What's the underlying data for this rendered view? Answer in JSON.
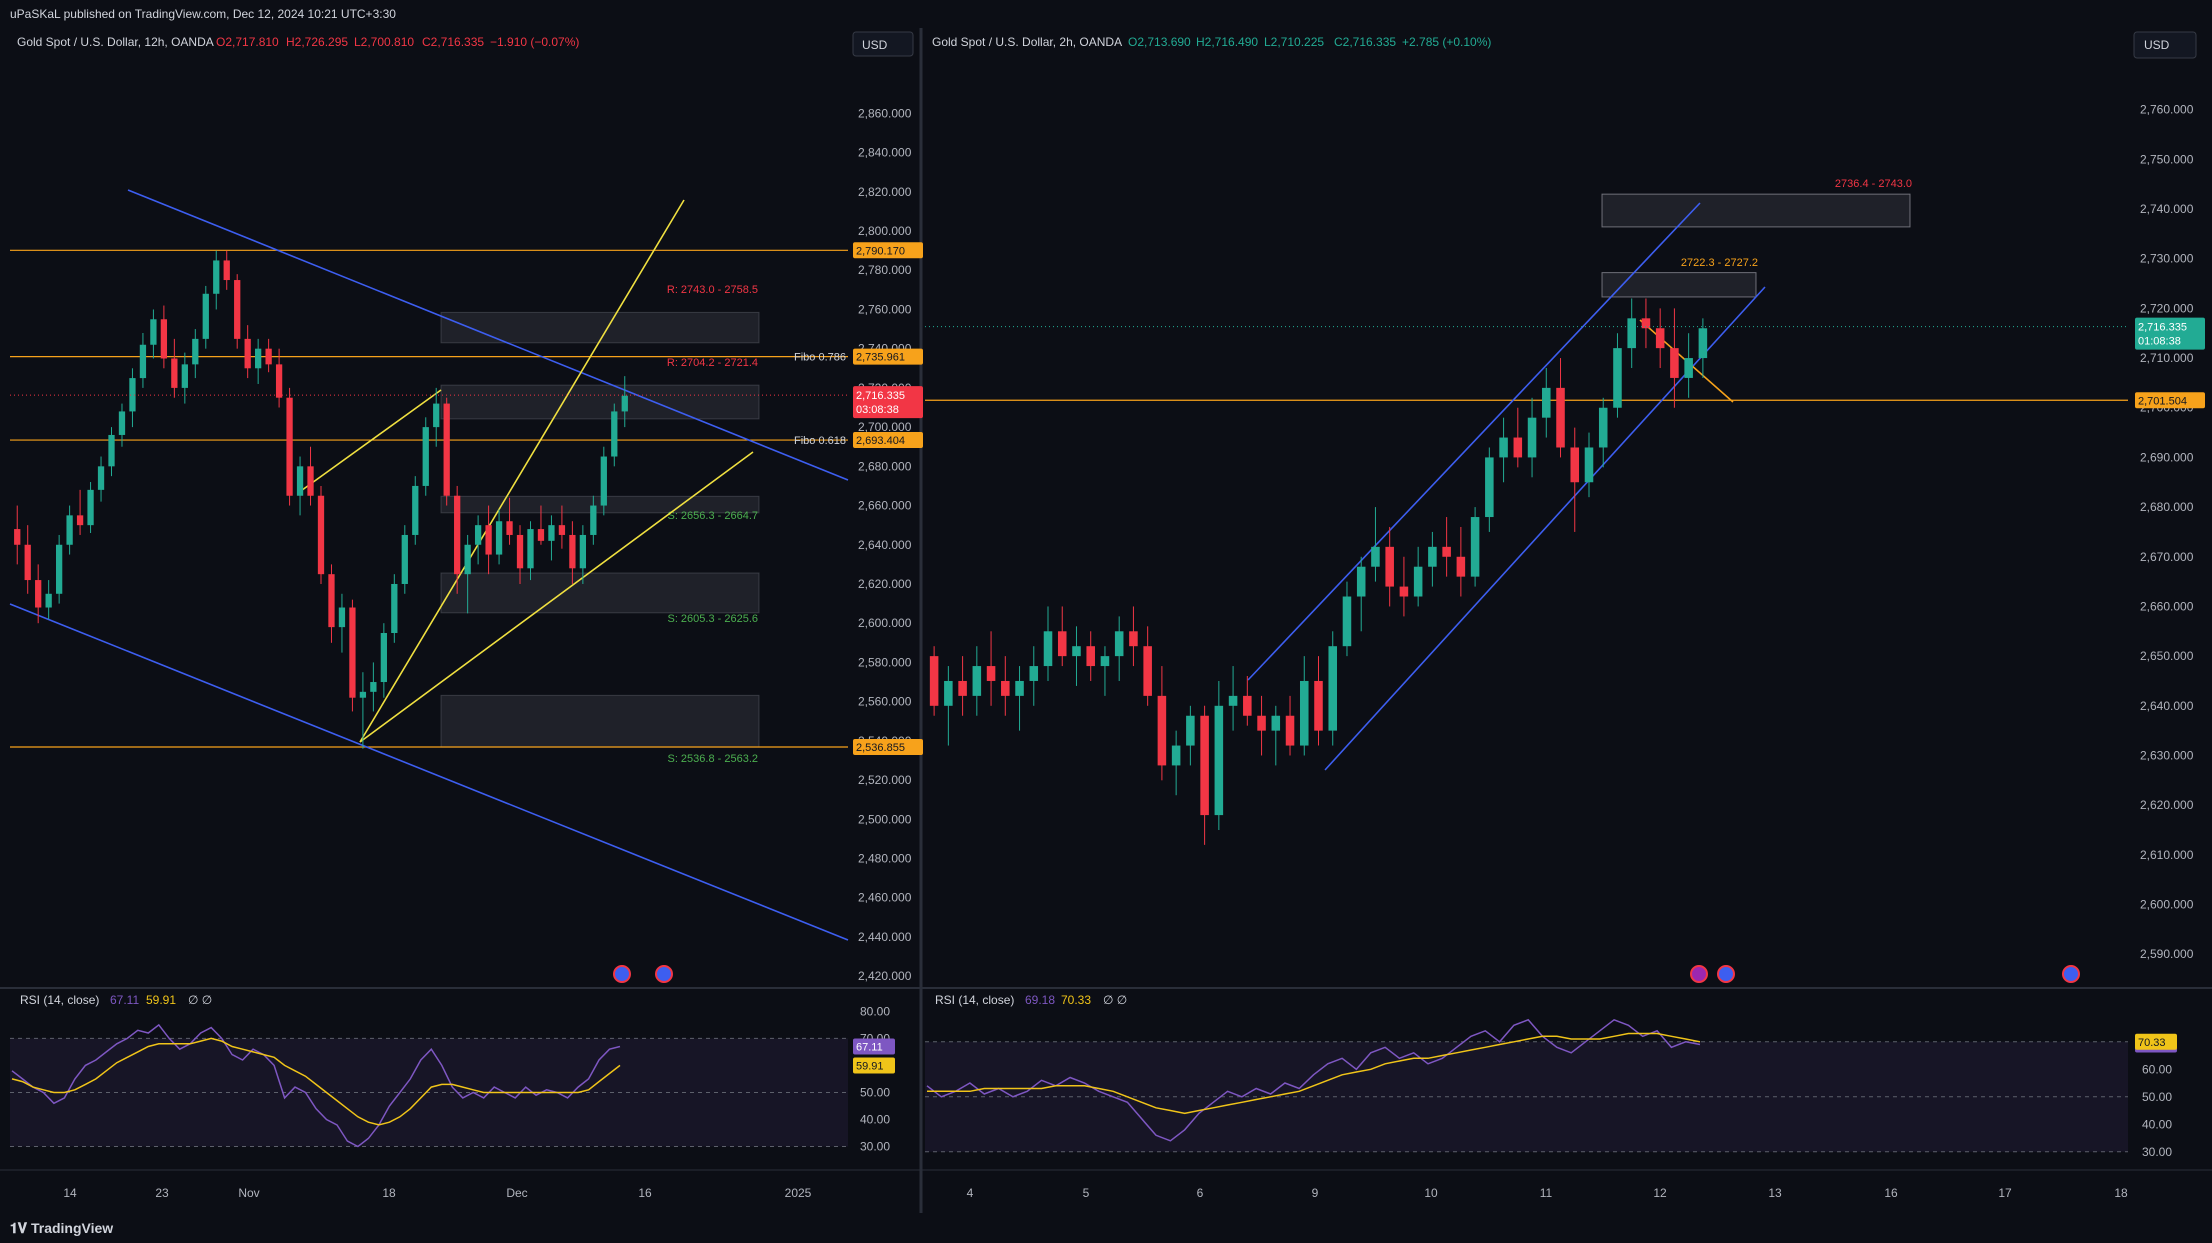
{
  "header": {
    "published_text": "uPaSKaL published on TradingView.com, Dec 12, 2024 10:21 UTC+3:30"
  },
  "footer": {
    "brand": "TradingView"
  },
  "colors": {
    "up": "#22ab94",
    "down": "#f23645",
    "fib": "#f7a21b",
    "channel_blue": "#3d5ef0",
    "channel_yellow": "#f0e040",
    "rsi": "#7e57c2",
    "rsi_ma": "#f0c419"
  },
  "chart_data": [
    {
      "type": "candlestick",
      "panel": "left",
      "title": "Gold Spot / U.S. Dollar, 12h, OANDA",
      "ohlc_label": {
        "o": "O2,717.810",
        "h": "H2,726.295",
        "l": "L2,700.810",
        "c": "C2,716.335",
        "chg": "−1.910 (−0.07%)"
      },
      "currency": "USD",
      "x_ticks": [
        "14",
        "23",
        "Nov",
        "18",
        "Dec",
        "16",
        "2025"
      ],
      "y_ticks": [
        "2,860.000",
        "2,840.000",
        "2,820.000",
        "2,800.000",
        "2,780.000",
        "2,760.000",
        "2,740.000",
        "2,720.000",
        "2,700.000",
        "2,680.000",
        "2,660.000",
        "2,640.000",
        "2,620.000",
        "2,600.000",
        "2,580.000",
        "2,560.000",
        "2,540.000",
        "2,520.000",
        "2,500.000",
        "2,480.000",
        "2,460.000",
        "2,440.000",
        "2,420.000"
      ],
      "ylim": [
        2416,
        2876
      ],
      "candles": [
        [
          2648,
          2660,
          2630,
          2640
        ],
        [
          2640,
          2650,
          2615,
          2622
        ],
        [
          2622,
          2630,
          2600,
          2608
        ],
        [
          2608,
          2622,
          2602,
          2615
        ],
        [
          2615,
          2645,
          2610,
          2640
        ],
        [
          2640,
          2660,
          2635,
          2655
        ],
        [
          2655,
          2668,
          2645,
          2650
        ],
        [
          2650,
          2672,
          2646,
          2668
        ],
        [
          2668,
          2685,
          2662,
          2680
        ],
        [
          2680,
          2700,
          2675,
          2696
        ],
        [
          2696,
          2712,
          2690,
          2708
        ],
        [
          2708,
          2730,
          2700,
          2725
        ],
        [
          2725,
          2748,
          2720,
          2742
        ],
        [
          2742,
          2760,
          2735,
          2755
        ],
        [
          2755,
          2762,
          2730,
          2735
        ],
        [
          2735,
          2745,
          2715,
          2720
        ],
        [
          2720,
          2738,
          2712,
          2732
        ],
        [
          2732,
          2750,
          2725,
          2745
        ],
        [
          2745,
          2772,
          2740,
          2768
        ],
        [
          2768,
          2790,
          2760,
          2785
        ],
        [
          2785,
          2790,
          2770,
          2775
        ],
        [
          2775,
          2778,
          2740,
          2745
        ],
        [
          2745,
          2752,
          2725,
          2730
        ],
        [
          2730,
          2745,
          2722,
          2740
        ],
        [
          2740,
          2745,
          2728,
          2732
        ],
        [
          2732,
          2740,
          2710,
          2715
        ],
        [
          2715,
          2720,
          2660,
          2665
        ],
        [
          2665,
          2685,
          2655,
          2680
        ],
        [
          2680,
          2690,
          2660,
          2665
        ],
        [
          2665,
          2670,
          2620,
          2625
        ],
        [
          2625,
          2630,
          2590,
          2598
        ],
        [
          2598,
          2615,
          2585,
          2608
        ],
        [
          2608,
          2612,
          2555,
          2562
        ],
        [
          2562,
          2575,
          2536,
          2565
        ],
        [
          2565,
          2580,
          2555,
          2570
        ],
        [
          2570,
          2600,
          2562,
          2595
        ],
        [
          2595,
          2625,
          2590,
          2620
        ],
        [
          2620,
          2650,
          2615,
          2645
        ],
        [
          2645,
          2675,
          2640,
          2670
        ],
        [
          2670,
          2705,
          2665,
          2700
        ],
        [
          2700,
          2720,
          2690,
          2712
        ],
        [
          2712,
          2715,
          2660,
          2665
        ],
        [
          2665,
          2670,
          2615,
          2625
        ],
        [
          2625,
          2645,
          2605,
          2640
        ],
        [
          2640,
          2655,
          2630,
          2650
        ],
        [
          2650,
          2660,
          2625,
          2635
        ],
        [
          2635,
          2658,
          2630,
          2652
        ],
        [
          2652,
          2664,
          2640,
          2645
        ],
        [
          2645,
          2650,
          2620,
          2628
        ],
        [
          2628,
          2652,
          2622,
          2648
        ],
        [
          2648,
          2660,
          2640,
          2642
        ],
        [
          2642,
          2655,
          2632,
          2650
        ],
        [
          2650,
          2660,
          2638,
          2645
        ],
        [
          2645,
          2652,
          2620,
          2628
        ],
        [
          2628,
          2650,
          2620,
          2645
        ],
        [
          2645,
          2665,
          2640,
          2660
        ],
        [
          2660,
          2690,
          2655,
          2685
        ],
        [
          2685,
          2712,
          2680,
          2708
        ],
        [
          2708,
          2726,
          2700,
          2716
        ]
      ],
      "horizontal_levels": [
        {
          "price": 2790.17,
          "label": "2,790.170"
        },
        {
          "price": 2735.961,
          "label": "2,735.961",
          "tag": "Fibo 0.786"
        },
        {
          "price": 2693.404,
          "label": "2,693.404",
          "tag": "Fibo 0.618"
        },
        {
          "price": 2536.855,
          "label": "2,536.855"
        }
      ],
      "current_price": {
        "label": "2,716.335",
        "countdown": "03:08:38"
      },
      "zones": [
        {
          "text": "R: 2743.0 - 2758.5",
          "low": 2743.0,
          "high": 2758.5,
          "kind": "resistance"
        },
        {
          "text": "R: 2704.2 - 2721.4",
          "low": 2704.2,
          "high": 2721.4,
          "kind": "resistance"
        },
        {
          "text": "S: 2656.3 - 2664.7",
          "low": 2656.3,
          "high": 2664.7,
          "kind": "support"
        },
        {
          "text": "S: 2605.3 - 2625.6",
          "low": 2605.3,
          "high": 2625.6,
          "kind": "support"
        },
        {
          "text": "S: 2536.8 - 2563.2",
          "low": 2536.8,
          "high": 2563.2,
          "kind": "support"
        }
      ],
      "rsi": {
        "label": "RSI (14, close)",
        "value": "67.11",
        "ma_value": "59.91",
        "extra": "∅ ∅",
        "y_ticks": [
          "80.00",
          "70.00",
          "50.00",
          "40.00",
          "30.00"
        ],
        "ylim": [
          25,
          82
        ],
        "values": [
          58,
          55,
          52,
          50,
          46,
          48,
          55,
          60,
          62,
          65,
          68,
          70,
          73,
          72,
          75,
          70,
          66,
          68,
          72,
          74,
          70,
          64,
          62,
          66,
          64,
          60,
          48,
          52,
          50,
          44,
          40,
          38,
          32,
          30,
          33,
          38,
          45,
          50,
          55,
          62,
          66,
          60,
          52,
          48,
          50,
          48,
          52,
          50,
          48,
          52,
          49,
          51,
          50,
          48,
          52,
          55,
          62,
          66,
          67
        ],
        "ma_values": [
          55,
          54,
          52,
          51,
          50,
          50,
          51,
          53,
          55,
          58,
          61,
          63,
          65,
          67,
          68,
          68,
          68,
          68,
          69,
          70,
          69,
          67,
          66,
          65,
          64,
          63,
          60,
          58,
          56,
          53,
          50,
          47,
          44,
          41,
          39,
          38,
          39,
          41,
          44,
          48,
          52,
          53,
          53,
          52,
          51,
          50,
          50,
          50,
          50,
          50,
          50,
          50,
          50,
          50,
          50,
          51,
          54,
          57,
          60
        ]
      }
    },
    {
      "type": "candlestick",
      "panel": "right",
      "title": "Gold Spot / U.S. Dollar, 2h, OANDA",
      "ohlc_label": {
        "o": "O2,713.690",
        "h": "H2,716.490",
        "l": "L2,710.225",
        "c": "C2,716.335",
        "chg": "+2.785 (+0.10%)"
      },
      "currency": "USD",
      "x_ticks": [
        "4",
        "5",
        "6",
        "9",
        "10",
        "11",
        "12",
        "13",
        "16",
        "17",
        "18"
      ],
      "y_ticks": [
        "2,760.000",
        "2,750.000",
        "2,740.000",
        "2,730.000",
        "2,720.000",
        "2,710.000",
        "2,700.000",
        "2,690.000",
        "2,680.000",
        "2,670.000",
        "2,660.000",
        "2,650.000",
        "2,640.000",
        "2,630.000",
        "2,620.000",
        "2,610.000",
        "2,600.000",
        "2,590.000"
      ],
      "ylim": [
        2584,
        2770
      ],
      "candles": [
        [
          2650,
          2652,
          2638,
          2640
        ],
        [
          2640,
          2648,
          2632,
          2645
        ],
        [
          2645,
          2650,
          2638,
          2642
        ],
        [
          2642,
          2652,
          2638,
          2648
        ],
        [
          2648,
          2655,
          2640,
          2645
        ],
        [
          2645,
          2650,
          2638,
          2642
        ],
        [
          2642,
          2648,
          2635,
          2645
        ],
        [
          2645,
          2652,
          2640,
          2648
        ],
        [
          2648,
          2660,
          2645,
          2655
        ],
        [
          2655,
          2660,
          2648,
          2650
        ],
        [
          2650,
          2656,
          2644,
          2652
        ],
        [
          2652,
          2655,
          2645,
          2648
        ],
        [
          2648,
          2652,
          2642,
          2650
        ],
        [
          2650,
          2658,
          2645,
          2655
        ],
        [
          2655,
          2660,
          2648,
          2652
        ],
        [
          2652,
          2656,
          2640,
          2642
        ],
        [
          2642,
          2648,
          2625,
          2628
        ],
        [
          2628,
          2635,
          2622,
          2632
        ],
        [
          2632,
          2640,
          2628,
          2638
        ],
        [
          2638,
          2640,
          2612,
          2618
        ],
        [
          2618,
          2645,
          2615,
          2640
        ],
        [
          2640,
          2648,
          2635,
          2642
        ],
        [
          2642,
          2646,
          2636,
          2638
        ],
        [
          2638,
          2642,
          2630,
          2635
        ],
        [
          2635,
          2640,
          2628,
          2638
        ],
        [
          2638,
          2642,
          2630,
          2632
        ],
        [
          2632,
          2650,
          2630,
          2645
        ],
        [
          2645,
          2650,
          2632,
          2635
        ],
        [
          2635,
          2655,
          2632,
          2652
        ],
        [
          2652,
          2665,
          2650,
          2662
        ],
        [
          2662,
          2670,
          2655,
          2668
        ],
        [
          2668,
          2680,
          2665,
          2672
        ],
        [
          2672,
          2676,
          2660,
          2664
        ],
        [
          2664,
          2670,
          2658,
          2662
        ],
        [
          2662,
          2672,
          2660,
          2668
        ],
        [
          2668,
          2675,
          2664,
          2672
        ],
        [
          2672,
          2678,
          2666,
          2670
        ],
        [
          2670,
          2676,
          2662,
          2666
        ],
        [
          2666,
          2680,
          2664,
          2678
        ],
        [
          2678,
          2692,
          2675,
          2690
        ],
        [
          2690,
          2698,
          2685,
          2694
        ],
        [
          2694,
          2700,
          2688,
          2690
        ],
        [
          2690,
          2702,
          2686,
          2698
        ],
        [
          2698,
          2708,
          2694,
          2704
        ],
        [
          2704,
          2710,
          2690,
          2692
        ],
        [
          2692,
          2696,
          2675,
          2685
        ],
        [
          2685,
          2695,
          2682,
          2692
        ],
        [
          2692,
          2702,
          2688,
          2700
        ],
        [
          2700,
          2715,
          2698,
          2712
        ],
        [
          2712,
          2722,
          2708,
          2718
        ],
        [
          2718,
          2722,
          2712,
          2716
        ],
        [
          2716,
          2720,
          2708,
          2712
        ],
        [
          2712,
          2720,
          2700,
          2706
        ],
        [
          2706,
          2715,
          2702,
          2710
        ],
        [
          2710,
          2718,
          2706,
          2716
        ]
      ],
      "horizontal_levels": [
        {
          "price": 2701.504,
          "label": "2,701.504"
        }
      ],
      "current_price": {
        "label": "2,716.335",
        "countdown": "01:08:38"
      },
      "zones": [
        {
          "text": "2736.4 - 2743.0",
          "low": 2736.4,
          "high": 2743.0,
          "kind": "resistance"
        },
        {
          "text": "2722.3 - 2727.2",
          "low": 2722.3,
          "high": 2727.2,
          "kind": "target"
        }
      ],
      "rsi": {
        "label": "RSI (14, close)",
        "value": "69.18",
        "ma_value": "70.33",
        "extra": "∅ ∅",
        "y_ticks": [
          "70.00",
          "60.00",
          "50.00",
          "40.00",
          "30.00"
        ],
        "ylim": [
          27,
          83
        ],
        "values": [
          54,
          50,
          52,
          55,
          51,
          53,
          50,
          52,
          56,
          54,
          57,
          55,
          52,
          50,
          48,
          42,
          36,
          34,
          38,
          44,
          48,
          52,
          50,
          53,
          51,
          55,
          53,
          58,
          62,
          64,
          60,
          66,
          68,
          64,
          66,
          62,
          64,
          68,
          72,
          74,
          70,
          76,
          78,
          72,
          68,
          66,
          70,
          74,
          78,
          76,
          72,
          74,
          68,
          70,
          69
        ],
        "ma_values": [
          52,
          52,
          52,
          52,
          53,
          53,
          53,
          53,
          53,
          54,
          54,
          54,
          53,
          52,
          50,
          48,
          46,
          45,
          44,
          45,
          46,
          47,
          48,
          49,
          50,
          51,
          52,
          54,
          56,
          58,
          59,
          60,
          62,
          63,
          64,
          64,
          65,
          66,
          67,
          68,
          69,
          70,
          71,
          72,
          72,
          71,
          71,
          71,
          72,
          73,
          73,
          73,
          72,
          71,
          70
        ]
      }
    }
  ]
}
